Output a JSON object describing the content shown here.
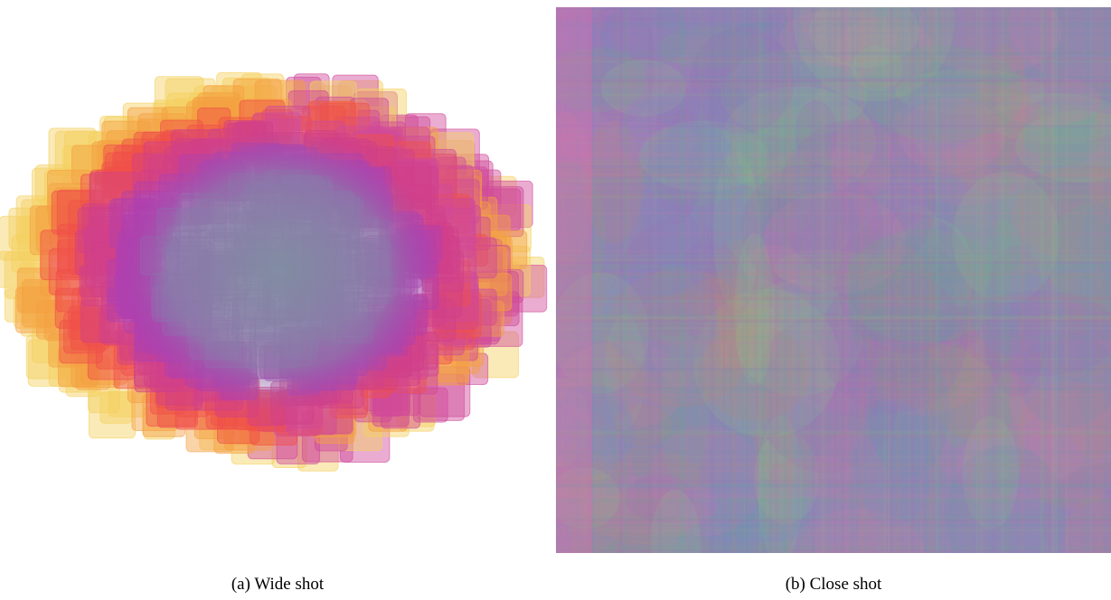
{
  "figure": {
    "panels": [
      {
        "caption": "(a) Wide shot"
      },
      {
        "caption": "(b) Close shot"
      }
    ]
  }
}
